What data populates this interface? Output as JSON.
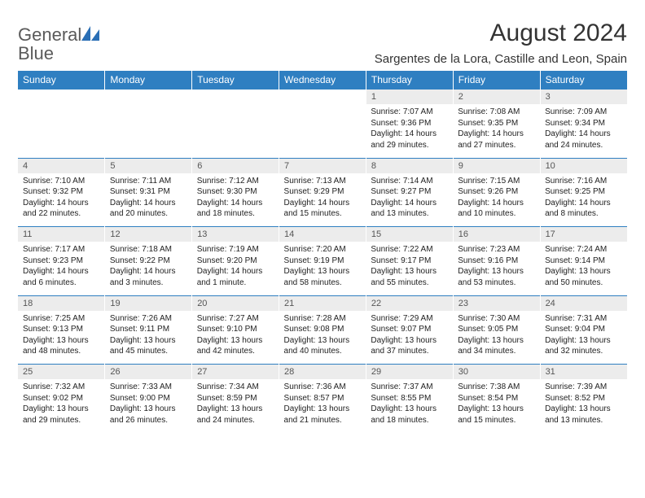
{
  "brand": {
    "part1": "General",
    "part2": "Blue"
  },
  "title": "August 2024",
  "location": "Sargentes de la Lora, Castille and Leon, Spain",
  "colors": {
    "header_bg": "#2f7fc1",
    "header_text": "#ffffff",
    "daynum_bg": "#ececec",
    "daynum_text": "#555555",
    "rule": "#2f7fc1",
    "brand_gray": "#5a5a5a",
    "brand_blue": "#2a6fb5"
  },
  "day_headers": [
    "Sunday",
    "Monday",
    "Tuesday",
    "Wednesday",
    "Thursday",
    "Friday",
    "Saturday"
  ],
  "weeks": [
    {
      "nums": [
        "",
        "",
        "",
        "",
        "1",
        "2",
        "3"
      ],
      "cells": [
        "",
        "",
        "",
        "",
        "Sunrise: 7:07 AM\nSunset: 9:36 PM\nDaylight: 14 hours and 29 minutes.",
        "Sunrise: 7:08 AM\nSunset: 9:35 PM\nDaylight: 14 hours and 27 minutes.",
        "Sunrise: 7:09 AM\nSunset: 9:34 PM\nDaylight: 14 hours and 24 minutes."
      ]
    },
    {
      "nums": [
        "4",
        "5",
        "6",
        "7",
        "8",
        "9",
        "10"
      ],
      "cells": [
        "Sunrise: 7:10 AM\nSunset: 9:32 PM\nDaylight: 14 hours and 22 minutes.",
        "Sunrise: 7:11 AM\nSunset: 9:31 PM\nDaylight: 14 hours and 20 minutes.",
        "Sunrise: 7:12 AM\nSunset: 9:30 PM\nDaylight: 14 hours and 18 minutes.",
        "Sunrise: 7:13 AM\nSunset: 9:29 PM\nDaylight: 14 hours and 15 minutes.",
        "Sunrise: 7:14 AM\nSunset: 9:27 PM\nDaylight: 14 hours and 13 minutes.",
        "Sunrise: 7:15 AM\nSunset: 9:26 PM\nDaylight: 14 hours and 10 minutes.",
        "Sunrise: 7:16 AM\nSunset: 9:25 PM\nDaylight: 14 hours and 8 minutes."
      ]
    },
    {
      "nums": [
        "11",
        "12",
        "13",
        "14",
        "15",
        "16",
        "17"
      ],
      "cells": [
        "Sunrise: 7:17 AM\nSunset: 9:23 PM\nDaylight: 14 hours and 6 minutes.",
        "Sunrise: 7:18 AM\nSunset: 9:22 PM\nDaylight: 14 hours and 3 minutes.",
        "Sunrise: 7:19 AM\nSunset: 9:20 PM\nDaylight: 14 hours and 1 minute.",
        "Sunrise: 7:20 AM\nSunset: 9:19 PM\nDaylight: 13 hours and 58 minutes.",
        "Sunrise: 7:22 AM\nSunset: 9:17 PM\nDaylight: 13 hours and 55 minutes.",
        "Sunrise: 7:23 AM\nSunset: 9:16 PM\nDaylight: 13 hours and 53 minutes.",
        "Sunrise: 7:24 AM\nSunset: 9:14 PM\nDaylight: 13 hours and 50 minutes."
      ]
    },
    {
      "nums": [
        "18",
        "19",
        "20",
        "21",
        "22",
        "23",
        "24"
      ],
      "cells": [
        "Sunrise: 7:25 AM\nSunset: 9:13 PM\nDaylight: 13 hours and 48 minutes.",
        "Sunrise: 7:26 AM\nSunset: 9:11 PM\nDaylight: 13 hours and 45 minutes.",
        "Sunrise: 7:27 AM\nSunset: 9:10 PM\nDaylight: 13 hours and 42 minutes.",
        "Sunrise: 7:28 AM\nSunset: 9:08 PM\nDaylight: 13 hours and 40 minutes.",
        "Sunrise: 7:29 AM\nSunset: 9:07 PM\nDaylight: 13 hours and 37 minutes.",
        "Sunrise: 7:30 AM\nSunset: 9:05 PM\nDaylight: 13 hours and 34 minutes.",
        "Sunrise: 7:31 AM\nSunset: 9:04 PM\nDaylight: 13 hours and 32 minutes."
      ]
    },
    {
      "nums": [
        "25",
        "26",
        "27",
        "28",
        "29",
        "30",
        "31"
      ],
      "cells": [
        "Sunrise: 7:32 AM\nSunset: 9:02 PM\nDaylight: 13 hours and 29 minutes.",
        "Sunrise: 7:33 AM\nSunset: 9:00 PM\nDaylight: 13 hours and 26 minutes.",
        "Sunrise: 7:34 AM\nSunset: 8:59 PM\nDaylight: 13 hours and 24 minutes.",
        "Sunrise: 7:36 AM\nSunset: 8:57 PM\nDaylight: 13 hours and 21 minutes.",
        "Sunrise: 7:37 AM\nSunset: 8:55 PM\nDaylight: 13 hours and 18 minutes.",
        "Sunrise: 7:38 AM\nSunset: 8:54 PM\nDaylight: 13 hours and 15 minutes.",
        "Sunrise: 7:39 AM\nSunset: 8:52 PM\nDaylight: 13 hours and 13 minutes."
      ]
    }
  ]
}
